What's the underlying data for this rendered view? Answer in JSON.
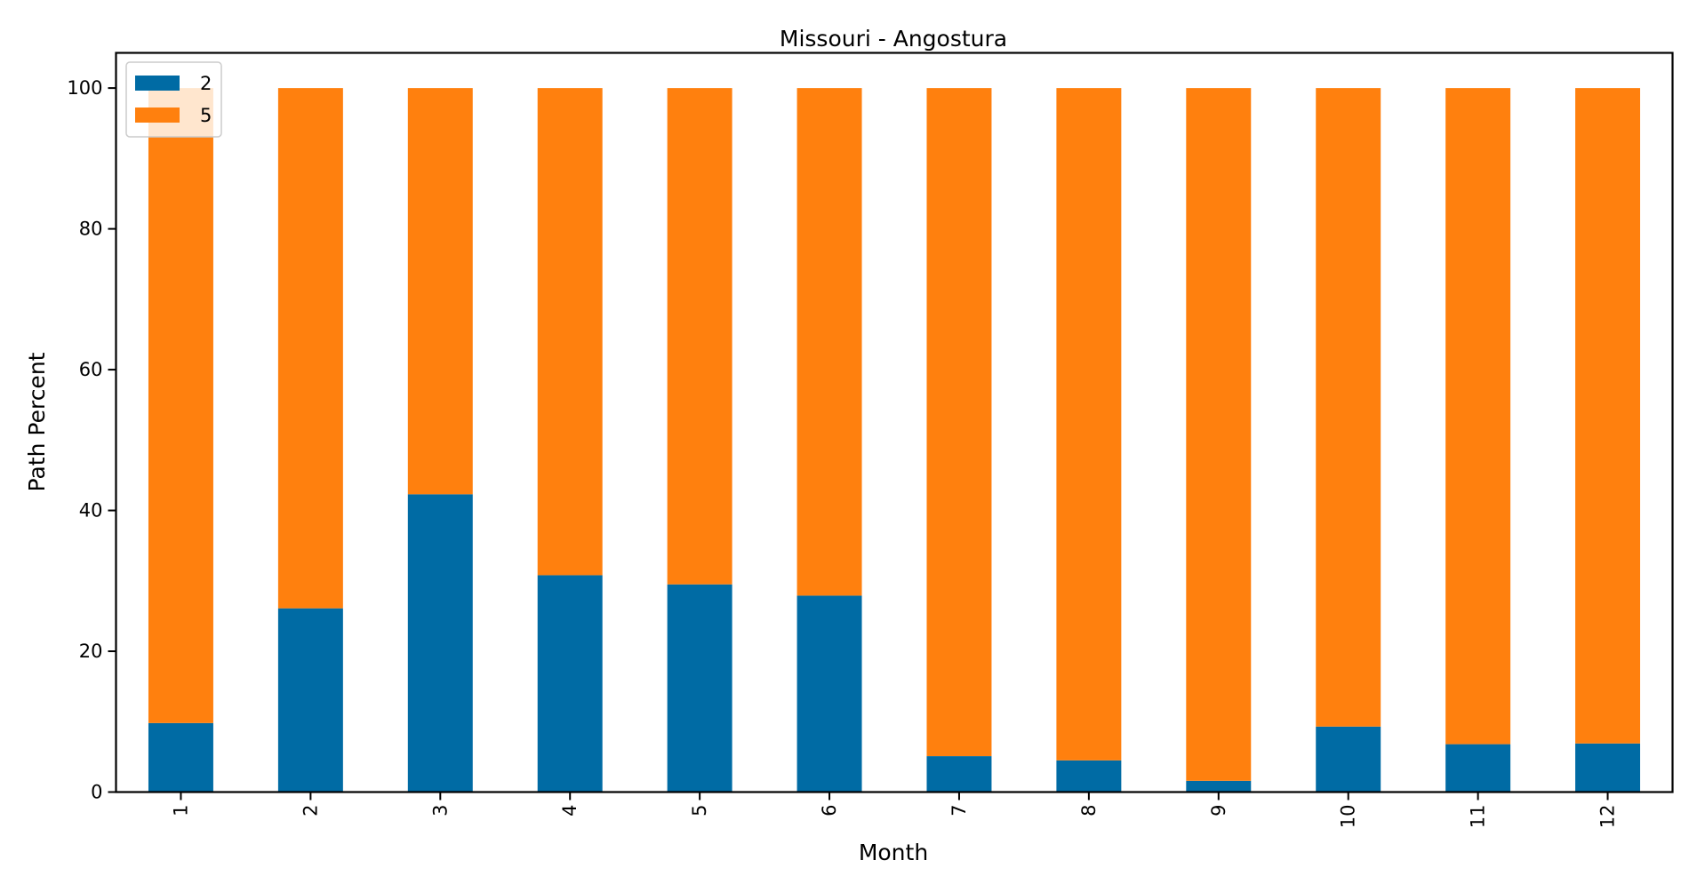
{
  "chart_data": {
    "type": "bar",
    "stacked": true,
    "title": "Missouri - Angostura",
    "xlabel": "Month",
    "ylabel": "Path Percent",
    "categories": [
      "1",
      "2",
      "3",
      "4",
      "5",
      "6",
      "7",
      "8",
      "9",
      "10",
      "11",
      "12"
    ],
    "series": [
      {
        "name": "2",
        "color": "#006ba4",
        "values": [
          9.8,
          26.1,
          42.3,
          30.8,
          29.5,
          27.9,
          5.1,
          4.5,
          1.6,
          9.3,
          6.8,
          6.9
        ]
      },
      {
        "name": "5",
        "color": "#ff800e",
        "values": [
          90.2,
          73.9,
          57.7,
          69.2,
          70.5,
          72.1,
          94.9,
          95.5,
          98.4,
          90.7,
          93.2,
          93.1
        ]
      }
    ],
    "ylim": [
      0,
      105
    ],
    "yticks": [
      0,
      20,
      40,
      60,
      80,
      100
    ],
    "xtick_rotation": "vertical",
    "legend_position": "upper-left",
    "grid": false
  }
}
